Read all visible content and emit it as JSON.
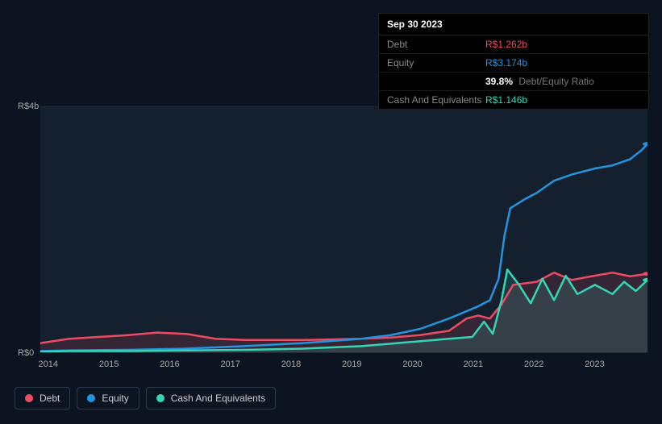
{
  "tooltip": {
    "date": "Sep 30 2023",
    "rows": [
      {
        "label": "Debt",
        "value": "R$1.262b",
        "cls": "debt"
      },
      {
        "label": "Equity",
        "value": "R$3.174b",
        "cls": "equity"
      }
    ],
    "ratio_pct": "39.8%",
    "ratio_label": "Debt/Equity Ratio",
    "cash_label": "Cash And Equivalents",
    "cash_value": "R$1.146b"
  },
  "chart": {
    "type": "line",
    "background_color": "#15202e",
    "page_background": "#0d1421",
    "grid_color": "#1f2a38",
    "x_labels": [
      "2014",
      "2015",
      "2016",
      "2017",
      "2018",
      "2019",
      "2020",
      "2021",
      "2022",
      "2023"
    ],
    "y_ticks": [
      {
        "label": "R$4b",
        "v": 4.0
      },
      {
        "label": "R$0",
        "v": 0.0
      }
    ],
    "y_min": 0,
    "y_max": 4.0,
    "x_min": 2013.5,
    "x_max": 2023.9,
    "axis_label_color": "#aaaaaa",
    "axis_label_fontsize": 11,
    "line_width": 2.5,
    "series": [
      {
        "name": "Debt",
        "color": "#ef4a63",
        "fill_opacity": 0.15,
        "points": [
          [
            2013.5,
            0.15
          ],
          [
            2014,
            0.22
          ],
          [
            2015,
            0.28
          ],
          [
            2015.5,
            0.32
          ],
          [
            2016,
            0.3
          ],
          [
            2016.5,
            0.22
          ],
          [
            2017,
            0.2
          ],
          [
            2018,
            0.2
          ],
          [
            2019,
            0.22
          ],
          [
            2019.5,
            0.24
          ],
          [
            2020,
            0.28
          ],
          [
            2020.5,
            0.35
          ],
          [
            2020.8,
            0.55
          ],
          [
            2021,
            0.6
          ],
          [
            2021.2,
            0.55
          ],
          [
            2021.4,
            0.78
          ],
          [
            2021.6,
            1.1
          ],
          [
            2022,
            1.15
          ],
          [
            2022.3,
            1.3
          ],
          [
            2022.6,
            1.18
          ],
          [
            2023,
            1.25
          ],
          [
            2023.3,
            1.3
          ],
          [
            2023.6,
            1.24
          ],
          [
            2023.9,
            1.28
          ]
        ]
      },
      {
        "name": "Equity",
        "color": "#2394df",
        "fill_opacity": 0.0,
        "points": [
          [
            2013.5,
            0.02
          ],
          [
            2014,
            0.03
          ],
          [
            2015,
            0.04
          ],
          [
            2016,
            0.06
          ],
          [
            2017,
            0.1
          ],
          [
            2018,
            0.15
          ],
          [
            2019,
            0.22
          ],
          [
            2019.5,
            0.28
          ],
          [
            2020,
            0.38
          ],
          [
            2020.5,
            0.55
          ],
          [
            2021,
            0.75
          ],
          [
            2021.2,
            0.85
          ],
          [
            2021.35,
            1.2
          ],
          [
            2021.45,
            1.9
          ],
          [
            2021.55,
            2.35
          ],
          [
            2021.8,
            2.5
          ],
          [
            2022,
            2.6
          ],
          [
            2022.3,
            2.8
          ],
          [
            2022.6,
            2.9
          ],
          [
            2023,
            3.0
          ],
          [
            2023.3,
            3.05
          ],
          [
            2023.6,
            3.15
          ],
          [
            2023.8,
            3.3
          ],
          [
            2023.9,
            3.4
          ]
        ]
      },
      {
        "name": "Cash And Equivalents",
        "color": "#35d6b6",
        "fill_opacity": 0.15,
        "points": [
          [
            2013.5,
            0.01
          ],
          [
            2014,
            0.02
          ],
          [
            2015,
            0.02
          ],
          [
            2016,
            0.03
          ],
          [
            2017,
            0.04
          ],
          [
            2018,
            0.06
          ],
          [
            2019,
            0.1
          ],
          [
            2019.5,
            0.14
          ],
          [
            2020,
            0.18
          ],
          [
            2020.5,
            0.22
          ],
          [
            2020.9,
            0.25
          ],
          [
            2021.1,
            0.5
          ],
          [
            2021.25,
            0.3
          ],
          [
            2021.4,
            0.85
          ],
          [
            2021.5,
            1.35
          ],
          [
            2021.7,
            1.1
          ],
          [
            2021.9,
            0.8
          ],
          [
            2022.1,
            1.2
          ],
          [
            2022.3,
            0.85
          ],
          [
            2022.5,
            1.25
          ],
          [
            2022.7,
            0.95
          ],
          [
            2023,
            1.1
          ],
          [
            2023.3,
            0.95
          ],
          [
            2023.5,
            1.15
          ],
          [
            2023.7,
            1.0
          ],
          [
            2023.9,
            1.18
          ]
        ]
      }
    ]
  },
  "legend": {
    "items": [
      {
        "label": "Debt",
        "color": "#ef4a63"
      },
      {
        "label": "Equity",
        "color": "#2394df"
      },
      {
        "label": "Cash And Equivalents",
        "color": "#35d6b6"
      }
    ]
  }
}
